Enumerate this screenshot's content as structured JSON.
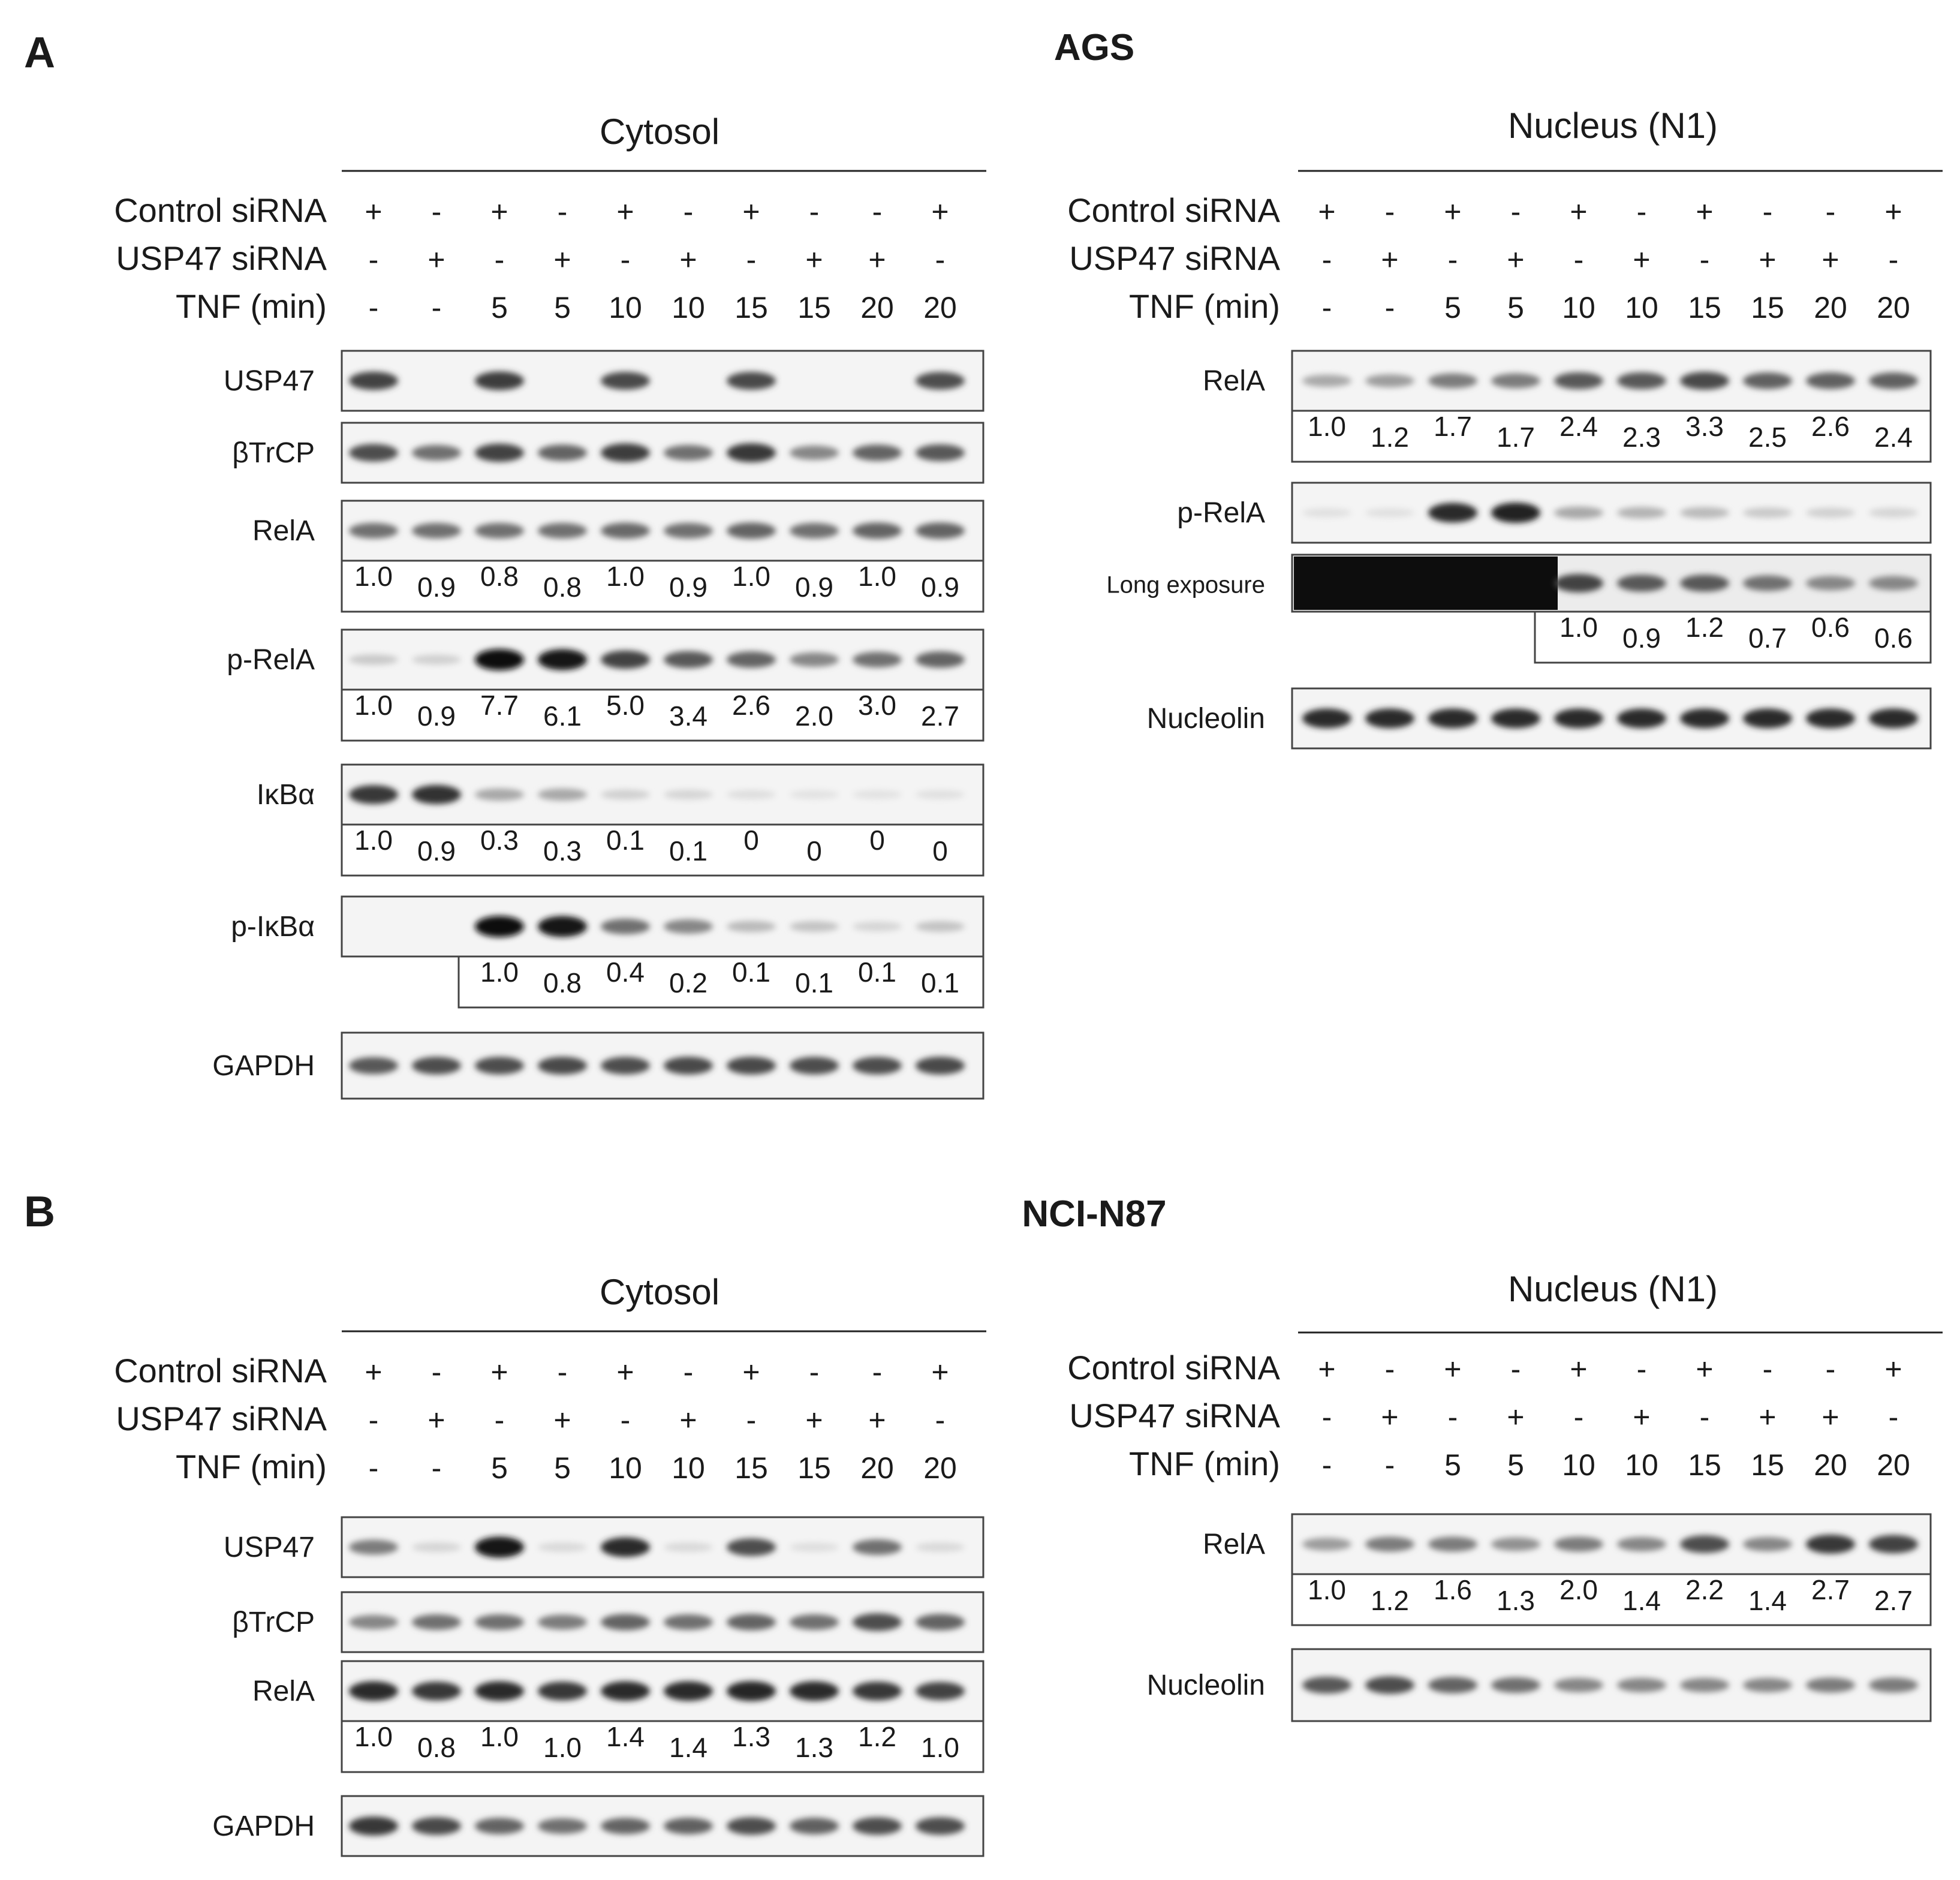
{
  "panels": [
    {
      "letter": "A",
      "cell_line": "AGS",
      "treatment_labels": [
        "Control siRNA",
        "USP47 siRNA",
        "TNF (min)"
      ],
      "control_sirna": [
        "+",
        "-",
        "+",
        "-",
        "+",
        "-",
        "+",
        "-",
        "-",
        "+"
      ],
      "usp47_sirna": [
        "-",
        "+",
        "-",
        "+",
        "-",
        "+",
        "-",
        "+",
        "+",
        "-"
      ],
      "tnf_min": [
        "-",
        "-",
        "5",
        "5",
        "10",
        "10",
        "15",
        "15",
        "20",
        "20"
      ],
      "cytosol": {
        "title": "Cytosol",
        "blots": [
          {
            "label": "USP47",
            "intensity": [
              0.75,
              0,
              0.78,
              0,
              0.72,
              0,
              0.72,
              0,
              0,
              0.7
            ],
            "values": [],
            "values_from": 0
          },
          {
            "label": "βTrCP",
            "intensity": [
              0.7,
              0.55,
              0.75,
              0.6,
              0.78,
              0.55,
              0.8,
              0.45,
              0.6,
              0.65
            ],
            "values": [],
            "values_from": 0
          },
          {
            "label": "RelA",
            "intensity": [
              0.55,
              0.55,
              0.55,
              0.55,
              0.58,
              0.55,
              0.6,
              0.55,
              0.6,
              0.6
            ],
            "values": [
              "1.0",
              "0.9",
              "0.8",
              "0.8",
              "1.0",
              "0.9",
              "1.0",
              "0.9",
              "1.0",
              "0.9"
            ],
            "values_from": 0
          },
          {
            "label": "p-RelA",
            "intensity": [
              0.15,
              0.12,
              0.98,
              0.95,
              0.75,
              0.65,
              0.6,
              0.45,
              0.55,
              0.6
            ],
            "values": [
              "1.0",
              "0.9",
              "7.7",
              "6.1",
              "5.0",
              "3.4",
              "2.6",
              "2.0",
              "3.0",
              "2.7"
            ],
            "values_from": 0
          },
          {
            "label": "IκBα",
            "intensity": [
              0.8,
              0.82,
              0.3,
              0.3,
              0.12,
              0.1,
              0.06,
              0.04,
              0.04,
              0.05
            ],
            "values": [
              "1.0",
              "0.9",
              "0.3",
              "0.3",
              "0.1",
              "0.1",
              "0",
              "0",
              "0",
              "0"
            ],
            "values_from": 0
          },
          {
            "label": "p-IκBα",
            "intensity": [
              0,
              0,
              0.98,
              0.95,
              0.55,
              0.45,
              0.22,
              0.18,
              0.1,
              0.18
            ],
            "values": [
              "1.0",
              "0.8",
              "0.4",
              "0.2",
              "0.1",
              "0.1",
              "0.1",
              "0.1"
            ],
            "values_from": 2
          },
          {
            "label": "GAPDH",
            "intensity": [
              0.65,
              0.7,
              0.7,
              0.72,
              0.7,
              0.72,
              0.72,
              0.7,
              0.7,
              0.72
            ],
            "values": [],
            "values_from": 0
          }
        ]
      },
      "nucleus": {
        "title": "Nucleus (N1)",
        "blots": [
          {
            "label": "RelA",
            "intensity": [
              0.3,
              0.35,
              0.5,
              0.5,
              0.65,
              0.65,
              0.72,
              0.62,
              0.62,
              0.62
            ],
            "values": [
              "1.0",
              "1.2",
              "1.7",
              "1.7",
              "2.4",
              "2.3",
              "3.3",
              "2.5",
              "2.6",
              "2.4"
            ],
            "values_from": 0
          },
          {
            "label": "p-RelA",
            "intensity": [
              0.05,
              0.05,
              0.85,
              0.9,
              0.3,
              0.25,
              0.22,
              0.15,
              0.12,
              0.1
            ],
            "values": [],
            "values_from": 0
          },
          {
            "label": "Long exposure",
            "intensity": [
              0.9,
              0.85,
              1.0,
              1.0,
              0.75,
              0.65,
              0.65,
              0.55,
              0.45,
              0.45
            ],
            "values": [
              "1.0",
              "0.9",
              "1.2",
              "0.7",
              "0.6",
              "0.6"
            ],
            "values_from": 4
          },
          {
            "label": "Nucleolin",
            "intensity": [
              0.85,
              0.85,
              0.85,
              0.85,
              0.85,
              0.85,
              0.85,
              0.85,
              0.85,
              0.85
            ],
            "values": [],
            "values_from": 0
          }
        ]
      }
    },
    {
      "letter": "B",
      "cell_line": "NCI-N87",
      "treatment_labels": [
        "Control siRNA",
        "USP47 siRNA",
        "TNF (min)"
      ],
      "control_sirna": [
        "+",
        "-",
        "+",
        "-",
        "+",
        "-",
        "+",
        "-",
        "-",
        "+"
      ],
      "usp47_sirna": [
        "-",
        "+",
        "-",
        "+",
        "-",
        "+",
        "-",
        "+",
        "+",
        "-"
      ],
      "tnf_min": [
        "-",
        "-",
        "5",
        "5",
        "10",
        "10",
        "15",
        "15",
        "20",
        "20"
      ],
      "cytosol": {
        "title": "Cytosol",
        "blots": [
          {
            "label": "USP47",
            "intensity": [
              0.5,
              0.1,
              0.95,
              0.08,
              0.85,
              0.08,
              0.7,
              0.06,
              0.55,
              0.08
            ],
            "values": [],
            "values_from": 0
          },
          {
            "label": "βTrCP",
            "intensity": [
              0.45,
              0.55,
              0.55,
              0.5,
              0.6,
              0.55,
              0.6,
              0.55,
              0.7,
              0.6
            ],
            "values": [],
            "values_from": 0
          },
          {
            "label": "RelA",
            "intensity": [
              0.85,
              0.8,
              0.85,
              0.8,
              0.85,
              0.85,
              0.88,
              0.85,
              0.8,
              0.75
            ],
            "values": [
              "1.0",
              "0.8",
              "1.0",
              "1.0",
              "1.4",
              "1.4",
              "1.3",
              "1.3",
              "1.2",
              "1.0"
            ],
            "values_from": 0
          },
          {
            "label": "GAPDH",
            "intensity": [
              0.8,
              0.72,
              0.6,
              0.55,
              0.6,
              0.62,
              0.7,
              0.62,
              0.7,
              0.7
            ],
            "values": [],
            "values_from": 0
          }
        ]
      },
      "nucleus": {
        "title": "Nucleus (N1)",
        "blots": [
          {
            "label": "RelA",
            "intensity": [
              0.35,
              0.5,
              0.5,
              0.4,
              0.5,
              0.45,
              0.7,
              0.45,
              0.8,
              0.75
            ],
            "values": [
              "1.0",
              "1.2",
              "1.6",
              "1.3",
              "2.0",
              "1.4",
              "2.2",
              "1.4",
              "2.7",
              "2.7"
            ],
            "values_from": 0
          },
          {
            "label": "Nucleolin",
            "intensity": [
              0.65,
              0.7,
              0.6,
              0.55,
              0.45,
              0.45,
              0.45,
              0.45,
              0.5,
              0.5
            ],
            "values": [],
            "values_from": 0
          }
        ]
      }
    }
  ]
}
